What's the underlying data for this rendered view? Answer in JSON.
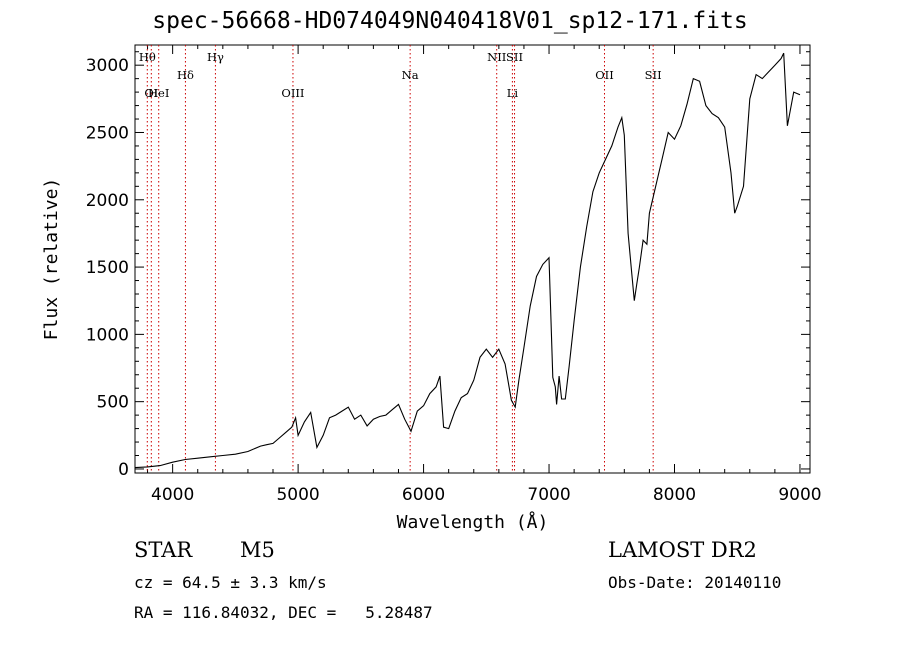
{
  "title": "spec-56668-HD074049N040418V01_sp12-171.fits",
  "footer": {
    "class_label": "STAR",
    "subclass": "M5",
    "survey": "LAMOST DR2",
    "cz": "cz = 64.5 ± 3.3 km/s",
    "obs_date": "Obs-Date: 20140110",
    "coords": "RA = 116.84032, DEC =   5.28487"
  },
  "chart_data": {
    "type": "line",
    "title": "spec-56668-HD074049N040418V01_sp12-171.fits",
    "xlabel": "Wavelength (Å)",
    "ylabel": "Flux (relative)",
    "xlim": [
      3700,
      9080
    ],
    "ylim": [
      -30,
      3150
    ],
    "xticks": [
      4000,
      5000,
      6000,
      7000,
      8000,
      9000
    ],
    "yticks": [
      0,
      500,
      1000,
      1500,
      2000,
      2500,
      3000
    ],
    "series": [
      {
        "x": [
          3700,
          3800,
          3900,
          4000,
          4100,
          4200,
          4300,
          4400,
          4500,
          4600,
          4700,
          4750,
          4800,
          4850,
          4900,
          4950,
          4980,
          5000,
          5050,
          5100,
          5150,
          5200,
          5250,
          5300,
          5350,
          5400,
          5450,
          5500,
          5550,
          5600,
          5650,
          5700,
          5750,
          5800,
          5850,
          5900,
          5950,
          6000,
          6050,
          6100,
          6130,
          6160,
          6200,
          6250,
          6300,
          6350,
          6400,
          6450,
          6500,
          6550,
          6600,
          6650,
          6700,
          6730,
          6760,
          6800,
          6850,
          6900,
          6950,
          7000,
          7030,
          7050,
          7060,
          7080,
          7100,
          7130,
          7160,
          7200,
          7250,
          7300,
          7350,
          7400,
          7450,
          7500,
          7550,
          7580,
          7600,
          7630,
          7660,
          7680,
          7700,
          7720,
          7750,
          7780,
          7800,
          7850,
          7900,
          7950,
          8000,
          8050,
          8100,
          8150,
          8200,
          8250,
          8300,
          8350,
          8400,
          8450,
          8480,
          8500,
          8550,
          8600,
          8650,
          8700,
          8750,
          8800,
          8850,
          8870,
          8900,
          8950,
          9000
        ],
        "y": [
          10,
          15,
          25,
          50,
          70,
          80,
          90,
          100,
          110,
          130,
          170,
          180,
          190,
          230,
          270,
          310,
          380,
          250,
          350,
          420,
          160,
          250,
          380,
          400,
          430,
          460,
          370,
          400,
          320,
          370,
          390,
          400,
          440,
          480,
          370,
          280,
          430,
          470,
          560,
          610,
          690,
          310,
          300,
          430,
          530,
          560,
          660,
          830,
          890,
          830,
          890,
          780,
          510,
          460,
          660,
          900,
          1210,
          1430,
          1520,
          1570,
          680,
          610,
          480,
          690,
          520,
          520,
          760,
          1100,
          1500,
          1800,
          2060,
          2200,
          2300,
          2400,
          2540,
          2610,
          2480,
          1750,
          1450,
          1250,
          1380,
          1500,
          1700,
          1670,
          1900,
          2100,
          2300,
          2500,
          2450,
          2550,
          2710,
          2900,
          2880,
          2700,
          2640,
          2610,
          2540,
          2200,
          1900,
          1950,
          2100,
          2750,
          2930,
          2900,
          2950,
          3000,
          3050,
          3090,
          2550,
          2800,
          2780
        ]
      }
    ],
    "lines": [
      {
        "label": "Hθ",
        "x": 3798,
        "row": 1
      },
      {
        "label": "OI",
        "x": 3830,
        "row": 3
      },
      {
        "label": "HeI",
        "x": 3889,
        "row": 3
      },
      {
        "label": "Hδ",
        "x": 4102,
        "row": 2
      },
      {
        "label": "Hγ",
        "x": 4341,
        "row": 1
      },
      {
        "label": "OIII",
        "x": 4959,
        "row": 3
      },
      {
        "label": "Na",
        "x": 5893,
        "row": 2
      },
      {
        "label": "NII",
        "x": 6583,
        "row": 1
      },
      {
        "label": "Li",
        "x": 6708,
        "row": 3
      },
      {
        "label": "SII",
        "x": 6725,
        "row": 1
      },
      {
        "label": "OII",
        "x": 7442,
        "row": 2
      },
      {
        "label": "SII",
        "x": 7830,
        "row": 2
      }
    ],
    "line_color": "#cc0000",
    "grid": false,
    "legend": "none"
  }
}
